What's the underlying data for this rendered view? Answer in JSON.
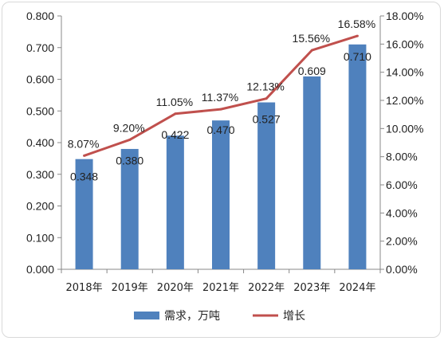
{
  "chart_data": {
    "type": "bar+line",
    "categories": [
      "2018年",
      "2019年",
      "2020年",
      "2021年",
      "2022年",
      "2023年",
      "2024年"
    ],
    "series": [
      {
        "name": "需求，万吨",
        "type": "bar",
        "axis": "left",
        "color": "#4f81bd",
        "values": [
          0.348,
          0.38,
          0.422,
          0.47,
          0.527,
          0.609,
          0.71
        ],
        "labels": [
          "0.348",
          "0.380",
          "0.422",
          "0.470",
          "0.527",
          "0.609",
          "0.710"
        ]
      },
      {
        "name": "增长",
        "type": "line",
        "axis": "right",
        "color": "#c0504d",
        "values": [
          8.07,
          9.2,
          11.05,
          11.37,
          12.13,
          15.56,
          16.58
        ],
        "labels": [
          "8.07%",
          "9.20%",
          "11.05%",
          "11.37%",
          "12.13%",
          "15.56%",
          "16.58%"
        ]
      }
    ],
    "y_left": {
      "min": 0,
      "max": 0.8,
      "ticks": [
        "0.000",
        "0.100",
        "0.200",
        "0.300",
        "0.400",
        "0.500",
        "0.600",
        "0.700",
        "0.800"
      ]
    },
    "y_right": {
      "min": 0,
      "max": 18,
      "ticks": [
        "0.00%",
        "2.00%",
        "4.00%",
        "6.00%",
        "8.00%",
        "10.00%",
        "12.00%",
        "14.00%",
        "16.00%",
        "18.00%"
      ]
    },
    "grid": false,
    "legend": "bottom"
  }
}
